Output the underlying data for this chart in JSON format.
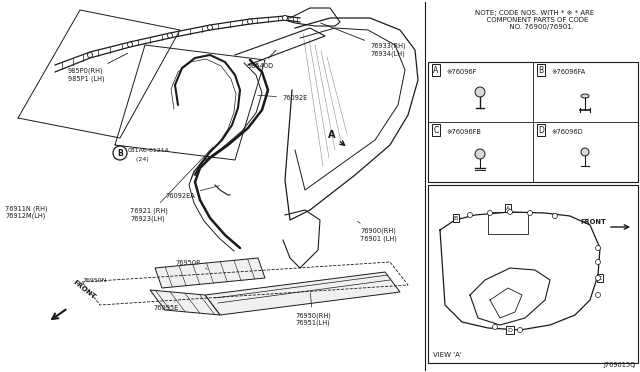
{
  "bg_color": "#ffffff",
  "line_color": "#1a1a1a",
  "diagram_code": "J769015Q",
  "note_text": "NOTE; CODE NOS. WITH * ※ * ARE\n  COMPONENT PARTS OF CODE\n      NO. 76900/76901.",
  "cells": [
    {
      "label": "A",
      "part": "※76096F"
    },
    {
      "label": "B",
      "part": "※76096FA"
    },
    {
      "label": "C",
      "part": "※76096FB"
    },
    {
      "label": "D",
      "part": "※76096D"
    }
  ]
}
